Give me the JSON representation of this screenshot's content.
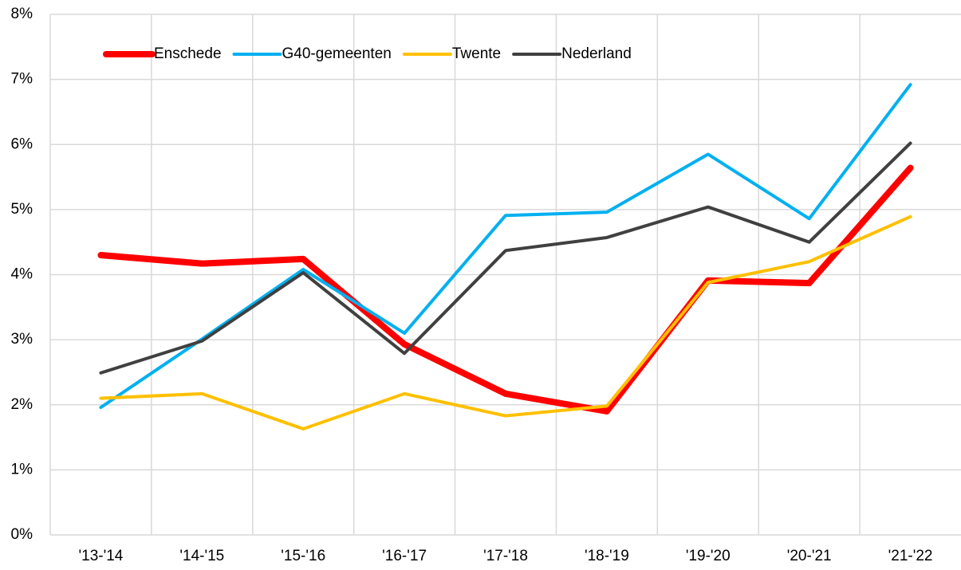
{
  "chart_data": {
    "type": "line",
    "categories": [
      "'13-'14",
      "'14-'15",
      "'15-'16",
      "'16-'17",
      "'17-'18",
      "'18-'19",
      "'19-'20",
      "'20-'21",
      "'21-'22"
    ],
    "series": [
      {
        "name": "Enschede",
        "color": "#ff0000",
        "width": 8,
        "values": [
          4.3,
          4.17,
          4.24,
          2.93,
          2.17,
          1.9,
          3.91,
          3.87,
          5.64
        ]
      },
      {
        "name": "G40-gemeenten",
        "color": "#00b0f0",
        "width": 4,
        "values": [
          1.96,
          3.01,
          4.08,
          3.1,
          4.91,
          4.96,
          5.85,
          4.86,
          6.92
        ]
      },
      {
        "name": "Twente",
        "color": "#ffc000",
        "width": 4,
        "values": [
          2.1,
          2.17,
          1.63,
          2.17,
          1.83,
          1.98,
          3.88,
          4.2,
          4.89
        ]
      },
      {
        "name": "Nederland",
        "color": "#404040",
        "width": 4,
        "values": [
          2.49,
          2.98,
          4.03,
          2.79,
          4.37,
          4.57,
          5.04,
          4.5,
          6.02
        ]
      }
    ],
    "ylim": [
      0,
      8
    ],
    "yticks": [
      {
        "value": 0,
        "label": "0%"
      },
      {
        "value": 1,
        "label": "1%"
      },
      {
        "value": 2,
        "label": "2%"
      },
      {
        "value": 3,
        "label": "3%"
      },
      {
        "value": 4,
        "label": "4%"
      },
      {
        "value": 5,
        "label": "5%"
      },
      {
        "value": 6,
        "label": "6%"
      },
      {
        "value": 7,
        "label": "7%"
      },
      {
        "value": 8,
        "label": "8%"
      }
    ],
    "grid": true,
    "legend": "upper left"
  }
}
